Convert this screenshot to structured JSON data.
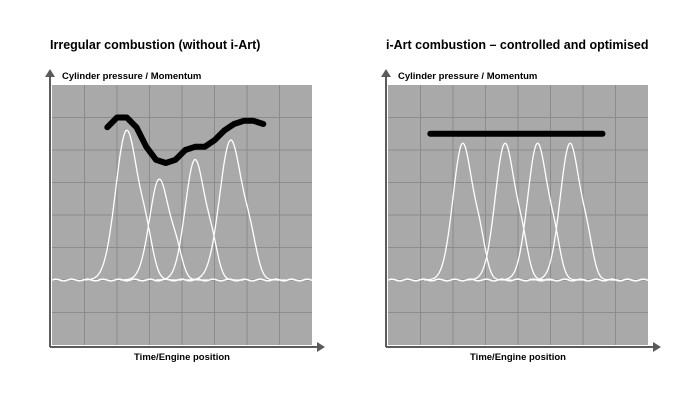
{
  "colors": {
    "plot_background": "#a9a9a9",
    "grid": "#8c8c8c",
    "axis": "#5a5a5a",
    "pressure_curves": "#ffffff",
    "momentum_line": "#000000"
  },
  "chart_data": [
    {
      "type": "line",
      "title": "Irregular combustion (without i-Art)",
      "xlabel": "Time/Engine position",
      "ylabel": "Cylinder pressure / Momentum",
      "xlim": [
        0,
        8
      ],
      "ylim": [
        0,
        8
      ],
      "grid": true,
      "legend": "none",
      "ticks": "none",
      "baseline": 2.0,
      "pressure_peaks": [
        {
          "center": 2.3,
          "peak": 6.6,
          "width": 0.34
        },
        {
          "center": 3.3,
          "peak": 5.1,
          "width": 0.3
        },
        {
          "center": 4.4,
          "peak": 5.7,
          "width": 0.3
        },
        {
          "center": 5.5,
          "peak": 6.3,
          "width": 0.34
        }
      ],
      "momentum_line": {
        "x": [
          1.7,
          2.0,
          2.3,
          2.6,
          2.9,
          3.2,
          3.5,
          3.8,
          4.1,
          4.4,
          4.7,
          5.0,
          5.3,
          5.6,
          5.9,
          6.2,
          6.5
        ],
        "y": [
          6.7,
          7.0,
          7.0,
          6.7,
          6.1,
          5.7,
          5.6,
          5.7,
          6.0,
          6.1,
          6.1,
          6.3,
          6.6,
          6.8,
          6.9,
          6.9,
          6.8
        ]
      }
    },
    {
      "type": "line",
      "title": "i-Art combustion – controlled and optimised",
      "xlabel": "Time/Engine position",
      "ylabel": "Cylinder pressure / Momentum",
      "xlim": [
        0,
        8
      ],
      "ylim": [
        0,
        8
      ],
      "grid": true,
      "legend": "none",
      "ticks": "none",
      "baseline": 2.0,
      "pressure_peaks": [
        {
          "center": 2.3,
          "peak": 6.2,
          "width": 0.3
        },
        {
          "center": 3.6,
          "peak": 6.2,
          "width": 0.3
        },
        {
          "center": 4.6,
          "peak": 6.2,
          "width": 0.3
        },
        {
          "center": 5.6,
          "peak": 6.2,
          "width": 0.3
        }
      ],
      "momentum_line": {
        "x": [
          1.3,
          6.6
        ],
        "y": [
          6.5,
          6.5
        ]
      }
    }
  ]
}
